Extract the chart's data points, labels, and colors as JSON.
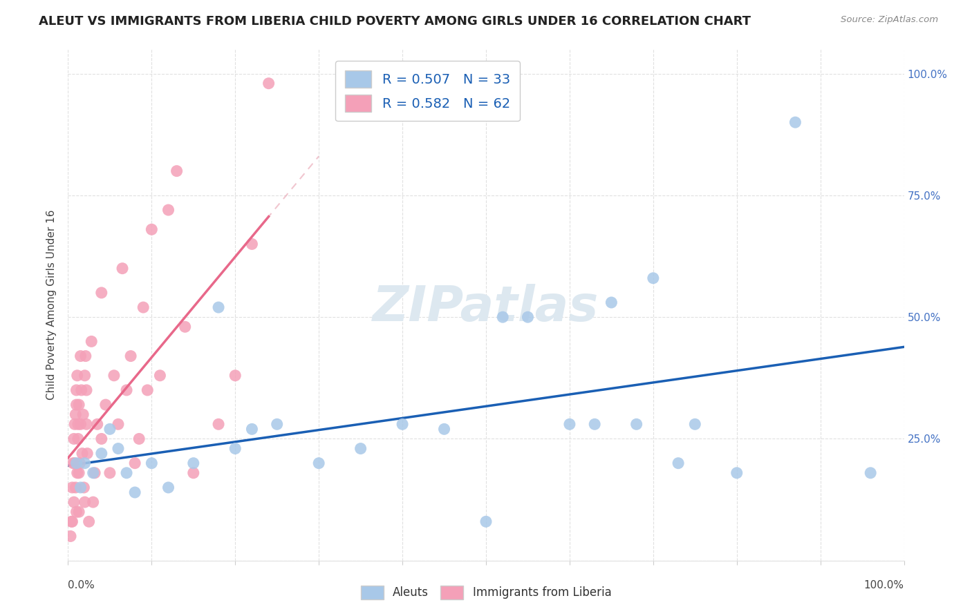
{
  "title": "ALEUT VS IMMIGRANTS FROM LIBERIA CHILD POVERTY AMONG GIRLS UNDER 16 CORRELATION CHART",
  "source": "Source: ZipAtlas.com",
  "ylabel": "Child Poverty Among Girls Under 16",
  "xlim": [
    0,
    100
  ],
  "ylim": [
    0,
    105
  ],
  "aleut_color": "#a8c8e8",
  "liberia_color": "#f4a0b8",
  "trend_aleut_color": "#1a5fb4",
  "trend_liberia_color": "#e8688a",
  "watermark_color": "#dde8f0",
  "aleut_x": [
    1.0,
    1.5,
    2.0,
    3.0,
    4.0,
    5.0,
    6.0,
    7.0,
    8.0,
    10.0,
    12.0,
    15.0,
    18.0,
    20.0,
    22.0,
    25.0,
    30.0,
    35.0,
    40.0,
    45.0,
    50.0,
    52.0,
    55.0,
    60.0,
    63.0,
    65.0,
    68.0,
    70.0,
    73.0,
    75.0,
    80.0,
    87.0,
    96.0
  ],
  "aleut_y": [
    20,
    15,
    20,
    18,
    22,
    27,
    23,
    18,
    14,
    20,
    15,
    20,
    52,
    23,
    27,
    28,
    20,
    23,
    28,
    27,
    8,
    50,
    50,
    28,
    28,
    53,
    28,
    58,
    20,
    28,
    18,
    90,
    18
  ],
  "liberia_x": [
    0.3,
    0.4,
    0.5,
    0.5,
    0.6,
    0.7,
    0.7,
    0.8,
    0.8,
    0.9,
    0.9,
    1.0,
    1.0,
    1.0,
    1.1,
    1.1,
    1.2,
    1.2,
    1.3,
    1.3,
    1.3,
    1.4,
    1.5,
    1.5,
    1.6,
    1.7,
    1.8,
    1.9,
    2.0,
    2.0,
    2.1,
    2.2,
    2.2,
    2.3,
    2.5,
    2.8,
    3.0,
    3.2,
    3.5,
    4.0,
    4.0,
    4.5,
    5.0,
    5.5,
    6.0,
    6.5,
    7.0,
    7.5,
    8.0,
    8.5,
    9.0,
    9.5,
    10.0,
    11.0,
    12.0,
    13.0,
    14.0,
    15.0,
    18.0,
    20.0,
    22.0,
    24.0
  ],
  "liberia_y": [
    5,
    8,
    15,
    8,
    20,
    25,
    12,
    28,
    20,
    30,
    15,
    32,
    10,
    35,
    38,
    18,
    25,
    28,
    32,
    18,
    10,
    20,
    42,
    28,
    35,
    22,
    30,
    15,
    38,
    12,
    42,
    28,
    35,
    22,
    8,
    45,
    12,
    18,
    28,
    55,
    25,
    32,
    18,
    38,
    28,
    60,
    35,
    42,
    20,
    25,
    52,
    35,
    68,
    38,
    72,
    80,
    48,
    18,
    28,
    38,
    65,
    98
  ]
}
